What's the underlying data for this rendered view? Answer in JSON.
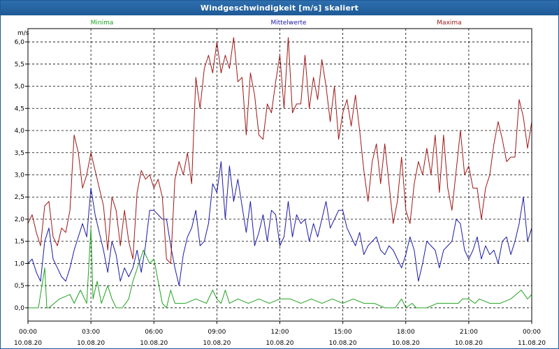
{
  "window": {
    "title": "Windgeschwindigkeit [m/s] skaliert"
  },
  "chart_data": {
    "type": "line",
    "ylabel": "m/s",
    "ylim": [
      -0.3,
      6.3
    ],
    "yticks": [
      0.0,
      0.5,
      1.0,
      1.5,
      2.0,
      2.5,
      3.0,
      3.5,
      4.0,
      4.5,
      5.0,
      5.5,
      6.0
    ],
    "ytick_labels": [
      "0,0",
      "0,5",
      "1,0",
      "1,5",
      "2,0",
      "2,5",
      "3,0",
      "3,5",
      "4,0",
      "4,5",
      "5,0",
      "5,5",
      "6,0"
    ],
    "xlim_hours": [
      0,
      24
    ],
    "x_ticks": [
      {
        "hour": 0,
        "time": "00:00",
        "date": "10.08.20"
      },
      {
        "hour": 3,
        "time": "03:00",
        "date": "10.08.20"
      },
      {
        "hour": 6,
        "time": "06:00",
        "date": "10.08.20"
      },
      {
        "hour": 9,
        "time": "09:00",
        "date": "10.08.20"
      },
      {
        "hour": 12,
        "time": "12:00",
        "date": "10.08.20"
      },
      {
        "hour": 15,
        "time": "15:00",
        "date": "10.08.20"
      },
      {
        "hour": 18,
        "time": "18:00",
        "date": "10.08.20"
      },
      {
        "hour": 21,
        "time": "21:00",
        "date": "10.08.20"
      },
      {
        "hour": 24,
        "time": "00:00",
        "date": "11.08.20"
      }
    ],
    "grid": true,
    "series": [
      {
        "name": "Minima",
        "color": "#1fa21f",
        "hours": [
          0,
          0.5,
          0.8,
          0.9,
          1,
          1.5,
          2,
          2.2,
          2.5,
          2.8,
          3,
          3.1,
          3.3,
          3.5,
          3.8,
          4,
          4.2,
          4.5,
          4.8,
          5,
          5.5,
          5.8,
          6,
          6.2,
          6.4,
          6.6,
          6.8,
          7,
          7.5,
          8,
          8.5,
          8.8,
          9,
          9.2,
          9.4,
          9.6,
          10,
          10.5,
          11,
          11.5,
          12,
          12.5,
          13,
          13.5,
          14,
          14.5,
          15,
          15.5,
          16,
          16.5,
          17,
          17.5,
          17.8,
          18,
          18.3,
          18.5,
          19,
          19.5,
          20,
          20.5,
          20.7,
          21,
          21.3,
          21.5,
          22,
          22.5,
          23,
          23.5,
          23.8,
          24
        ],
        "values": [
          0,
          0,
          0.9,
          0,
          0,
          0.2,
          0.3,
          0.1,
          0.4,
          0.1,
          1.8,
          0.2,
          0.6,
          0.1,
          0.5,
          0.2,
          0,
          0,
          0.2,
          0.6,
          1.3,
          1,
          1.1,
          0.6,
          0.1,
          0,
          0.4,
          0.1,
          0.1,
          0.2,
          0.1,
          0.4,
          0.2,
          0.1,
          0.4,
          0.1,
          0.2,
          0.1,
          0.2,
          0.1,
          0.2,
          0.2,
          0.1,
          0.2,
          0.1,
          0.2,
          0.1,
          0.2,
          0.1,
          0.1,
          0,
          0,
          0.2,
          0,
          0.1,
          0,
          0,
          0.1,
          0.1,
          0.1,
          0.2,
          0.2,
          0.1,
          0.2,
          0.1,
          0.1,
          0.2,
          0.4,
          0.2,
          0.3
        ]
      },
      {
        "name": "Mittelwerte",
        "color": "#1a1aa8",
        "hours": [
          0,
          0.2,
          0.4,
          0.6,
          0.8,
          1,
          1.2,
          1.4,
          1.6,
          1.8,
          2,
          2.2,
          2.4,
          2.6,
          2.8,
          3,
          3.2,
          3.4,
          3.6,
          3.8,
          4,
          4.2,
          4.4,
          4.6,
          4.8,
          5,
          5.2,
          5.4,
          5.6,
          5.8,
          6,
          6.2,
          6.4,
          6.6,
          6.8,
          7,
          7.2,
          7.4,
          7.6,
          7.8,
          8,
          8.2,
          8.4,
          8.6,
          8.8,
          9,
          9.2,
          9.4,
          9.6,
          9.8,
          10,
          10.2,
          10.4,
          10.6,
          10.8,
          11,
          11.2,
          11.4,
          11.6,
          11.8,
          12,
          12.2,
          12.4,
          12.6,
          12.8,
          13,
          13.2,
          13.4,
          13.6,
          13.8,
          14,
          14.2,
          14.4,
          14.6,
          14.8,
          15,
          15.2,
          15.4,
          15.6,
          15.8,
          16,
          16.2,
          16.4,
          16.6,
          16.8,
          17,
          17.2,
          17.4,
          17.6,
          17.8,
          18,
          18.2,
          18.4,
          18.6,
          18.8,
          19,
          19.2,
          19.4,
          19.6,
          19.8,
          20,
          20.2,
          20.4,
          20.6,
          20.8,
          21,
          21.2,
          21.4,
          21.6,
          21.8,
          22,
          22.2,
          22.4,
          22.6,
          22.8,
          23,
          23.2,
          23.4,
          23.6,
          23.8,
          24
        ],
        "values": [
          1.0,
          1.1,
          0.8,
          0.6,
          1.5,
          1.8,
          1.1,
          0.9,
          0.7,
          0.6,
          0.9,
          1.3,
          1.6,
          1.9,
          1.6,
          2.7,
          2.1,
          1.7,
          1.3,
          0.8,
          1.5,
          1.2,
          0.6,
          0.9,
          0.7,
          0.9,
          1.3,
          0.8,
          1.4,
          2.2,
          2.2,
          2.1,
          2.0,
          2.0,
          1.4,
          0.9,
          0.5,
          1.2,
          1.6,
          1.8,
          2.2,
          1.4,
          1.5,
          1.9,
          2.8,
          2.6,
          3.3,
          2.0,
          3.2,
          2.4,
          2.9,
          2.3,
          1.7,
          2.4,
          1.4,
          1.7,
          2.1,
          1.5,
          2.2,
          2.1,
          1.4,
          1.6,
          2.4,
          1.6,
          2.1,
          1.9,
          2.0,
          1.5,
          1.9,
          1.6,
          2.0,
          2.4,
          1.8,
          2.0,
          2.2,
          2.2,
          1.8,
          1.6,
          1.4,
          1.7,
          1.2,
          1.4,
          1.5,
          1.6,
          1.3,
          1.2,
          1.4,
          1.3,
          1.1,
          0.9,
          1.2,
          1.6,
          1.3,
          0.6,
          1.0,
          1.5,
          1.4,
          1.3,
          0.9,
          1.3,
          1.4,
          1.5,
          2.0,
          1.9,
          1.3,
          1.1,
          1.3,
          1.6,
          1.1,
          1.4,
          1.2,
          1.3,
          1.0,
          1.5,
          1.6,
          1.2,
          1.5,
          1.9,
          2.5,
          1.5,
          1.8
        ]
      },
      {
        "name": "Maxima",
        "color": "#a01616",
        "hours": [
          0,
          0.2,
          0.4,
          0.6,
          0.8,
          1,
          1.2,
          1.4,
          1.6,
          1.8,
          2,
          2.2,
          2.4,
          2.6,
          2.8,
          3,
          3.2,
          3.4,
          3.6,
          3.8,
          4,
          4.2,
          4.4,
          4.6,
          4.8,
          5,
          5.2,
          5.4,
          5.6,
          5.8,
          6,
          6.2,
          6.4,
          6.6,
          6.8,
          7,
          7.2,
          7.4,
          7.6,
          7.8,
          8,
          8.2,
          8.4,
          8.6,
          8.8,
          9,
          9.2,
          9.4,
          9.6,
          9.8,
          10,
          10.2,
          10.4,
          10.6,
          10.8,
          11,
          11.2,
          11.4,
          11.6,
          11.8,
          12,
          12.2,
          12.4,
          12.6,
          12.8,
          13,
          13.2,
          13.4,
          13.6,
          13.8,
          14,
          14.2,
          14.4,
          14.6,
          14.8,
          15,
          15.2,
          15.4,
          15.6,
          15.8,
          16,
          16.2,
          16.4,
          16.6,
          16.8,
          17,
          17.2,
          17.4,
          17.6,
          17.8,
          18,
          18.2,
          18.4,
          18.6,
          18.8,
          19,
          19.2,
          19.4,
          19.6,
          19.8,
          20,
          20.2,
          20.4,
          20.6,
          20.8,
          21,
          21.2,
          21.4,
          21.6,
          21.8,
          22,
          22.2,
          22.4,
          22.6,
          22.8,
          23,
          23.2,
          23.4,
          23.6,
          23.8,
          24
        ],
        "values": [
          1.9,
          2.1,
          1.7,
          1.4,
          2.3,
          2.4,
          1.6,
          1.4,
          1.8,
          1.7,
          2.2,
          3.9,
          3.5,
          2.7,
          3.0,
          3.5,
          3.1,
          2.7,
          2.3,
          1.3,
          2.5,
          2.2,
          1.4,
          2.2,
          1.5,
          1.1,
          2.6,
          3.1,
          2.9,
          3.0,
          2.7,
          2.9,
          2.5,
          1.1,
          1.0,
          2.9,
          3.3,
          3.0,
          3.5,
          2.8,
          5.2,
          4.5,
          5.4,
          5.7,
          5.3,
          6.0,
          5.3,
          5.7,
          5.4,
          6.1,
          5.1,
          5.2,
          3.9,
          5.3,
          4.8,
          3.9,
          3.8,
          4.6,
          4.4,
          5.1,
          5.7,
          4.5,
          6.1,
          4.4,
          4.6,
          4.6,
          5.7,
          4.5,
          5.2,
          4.7,
          5.6,
          5.0,
          4.2,
          5.0,
          3.8,
          4.4,
          4.7,
          4.1,
          4.8,
          4.0,
          3.1,
          2.4,
          3.3,
          3.7,
          2.8,
          3.7,
          2.8,
          1.9,
          2.4,
          3.4,
          2.2,
          1.9,
          2.8,
          3.3,
          3.0,
          3.6,
          3.0,
          3.9,
          2.6,
          3.9,
          2.7,
          2.2,
          3.1,
          4.0,
          3.0,
          3.2,
          2.7,
          2.7,
          2.0,
          2.7,
          3.0,
          3.7,
          4.2,
          3.8,
          3.3,
          3.4,
          3.4,
          4.7,
          4.3,
          3.6,
          4.2
        ]
      }
    ]
  }
}
